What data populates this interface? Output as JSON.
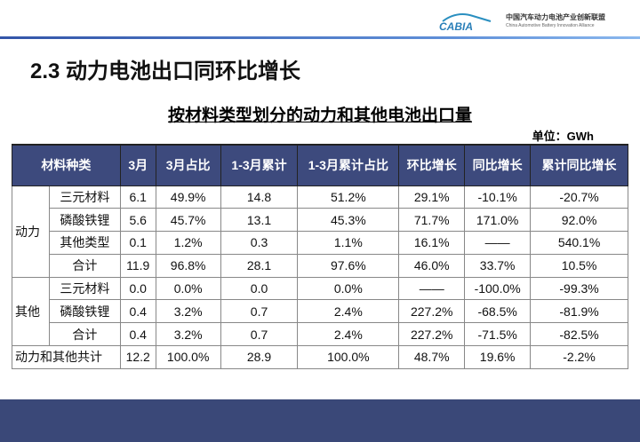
{
  "header": {
    "org_name": "中国汽车动力电池产业创新联盟",
    "org_name_en": "China Automotive Battery Innovation Alliance",
    "logo_text": "CABIA"
  },
  "title": "2.3 动力电池出口同环比增长",
  "subtitle": "按材料类型划分的动力和其他电池出口量",
  "unit": "单位：GWh",
  "table": {
    "columns": [
      "材料种类",
      "3月",
      "3月占比",
      "1-3月累计",
      "1-3月累计占比",
      "环比增长",
      "同比增长",
      "累计同比增长"
    ],
    "groups": [
      {
        "name": "动力",
        "rows": [
          [
            "三元材料",
            "6.1",
            "49.9%",
            "14.8",
            "51.2%",
            "29.1%",
            "-10.1%",
            "-20.7%"
          ],
          [
            "磷酸铁锂",
            "5.6",
            "45.7%",
            "13.1",
            "45.3%",
            "71.7%",
            "171.0%",
            "92.0%"
          ],
          [
            "其他类型",
            "0.1",
            "1.2%",
            "0.3",
            "1.1%",
            "16.1%",
            "——",
            "540.1%"
          ],
          [
            "合计",
            "11.9",
            "96.8%",
            "28.1",
            "97.6%",
            "46.0%",
            "33.7%",
            "10.5%"
          ]
        ]
      },
      {
        "name": "其他",
        "rows": [
          [
            "三元材料",
            "0.0",
            "0.0%",
            "0.0",
            "0.0%",
            "——",
            "-100.0%",
            "-99.3%"
          ],
          [
            "磷酸铁锂",
            "0.4",
            "3.2%",
            "0.7",
            "2.4%",
            "227.2%",
            "-68.5%",
            "-81.9%"
          ],
          [
            "合计",
            "0.4",
            "3.2%",
            "0.7",
            "2.4%",
            "227.2%",
            "-71.5%",
            "-82.5%"
          ]
        ]
      }
    ],
    "total": [
      "动力和其他共计",
      "12.2",
      "100.0%",
      "28.9",
      "100.0%",
      "48.7%",
      "19.6%",
      "-2.2%"
    ]
  },
  "colors": {
    "header_bg": "#3d4a7d",
    "footer_bg": "#3a4878",
    "accent": "#2a8fc0"
  }
}
